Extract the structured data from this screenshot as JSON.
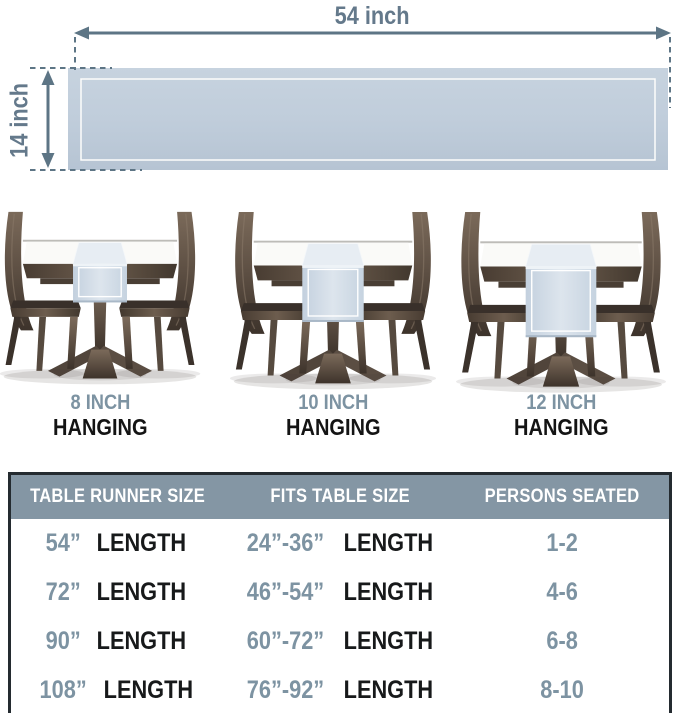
{
  "diagram": {
    "width_label": "54 inch",
    "height_label": "14 inch"
  },
  "illustrations": [
    {
      "inch": "8 INCH",
      "hanging": "HANGING"
    },
    {
      "inch": "10 INCH",
      "hanging": "HANGING"
    },
    {
      "inch": "12 INCH",
      "hanging": "HANGING"
    }
  ],
  "size_table": {
    "headers": [
      "TABLE RUNNER SIZE",
      "FITS TABLE SIZE",
      "PERSONS SEATED"
    ],
    "rows": [
      {
        "runner_num": "54”",
        "runner_word": "LENGTH",
        "fits_num": "24”-36”",
        "fits_word": "LENGTH",
        "persons": "1-2"
      },
      {
        "runner_num": "72”",
        "runner_word": "LENGTH",
        "fits_num": "46”-54”",
        "fits_word": "LENGTH",
        "persons": "4-6"
      },
      {
        "runner_num": "90”",
        "runner_word": "LENGTH",
        "fits_num": "60”-72”",
        "fits_word": "LENGTH",
        "persons": "6-8"
      },
      {
        "runner_num": "108”",
        "runner_word": "LENGTH",
        "fits_num": "76”-92”",
        "fits_word": "LENGTH",
        "persons": "8-10"
      }
    ]
  },
  "colors": {
    "accent_steel": "#5d7585",
    "label_blue": "#7d93a2",
    "text_dark": "#17191a",
    "runner_fill": "#c0cddb",
    "header_bg": "#8496a4",
    "wood_dark": "#3f352c"
  }
}
